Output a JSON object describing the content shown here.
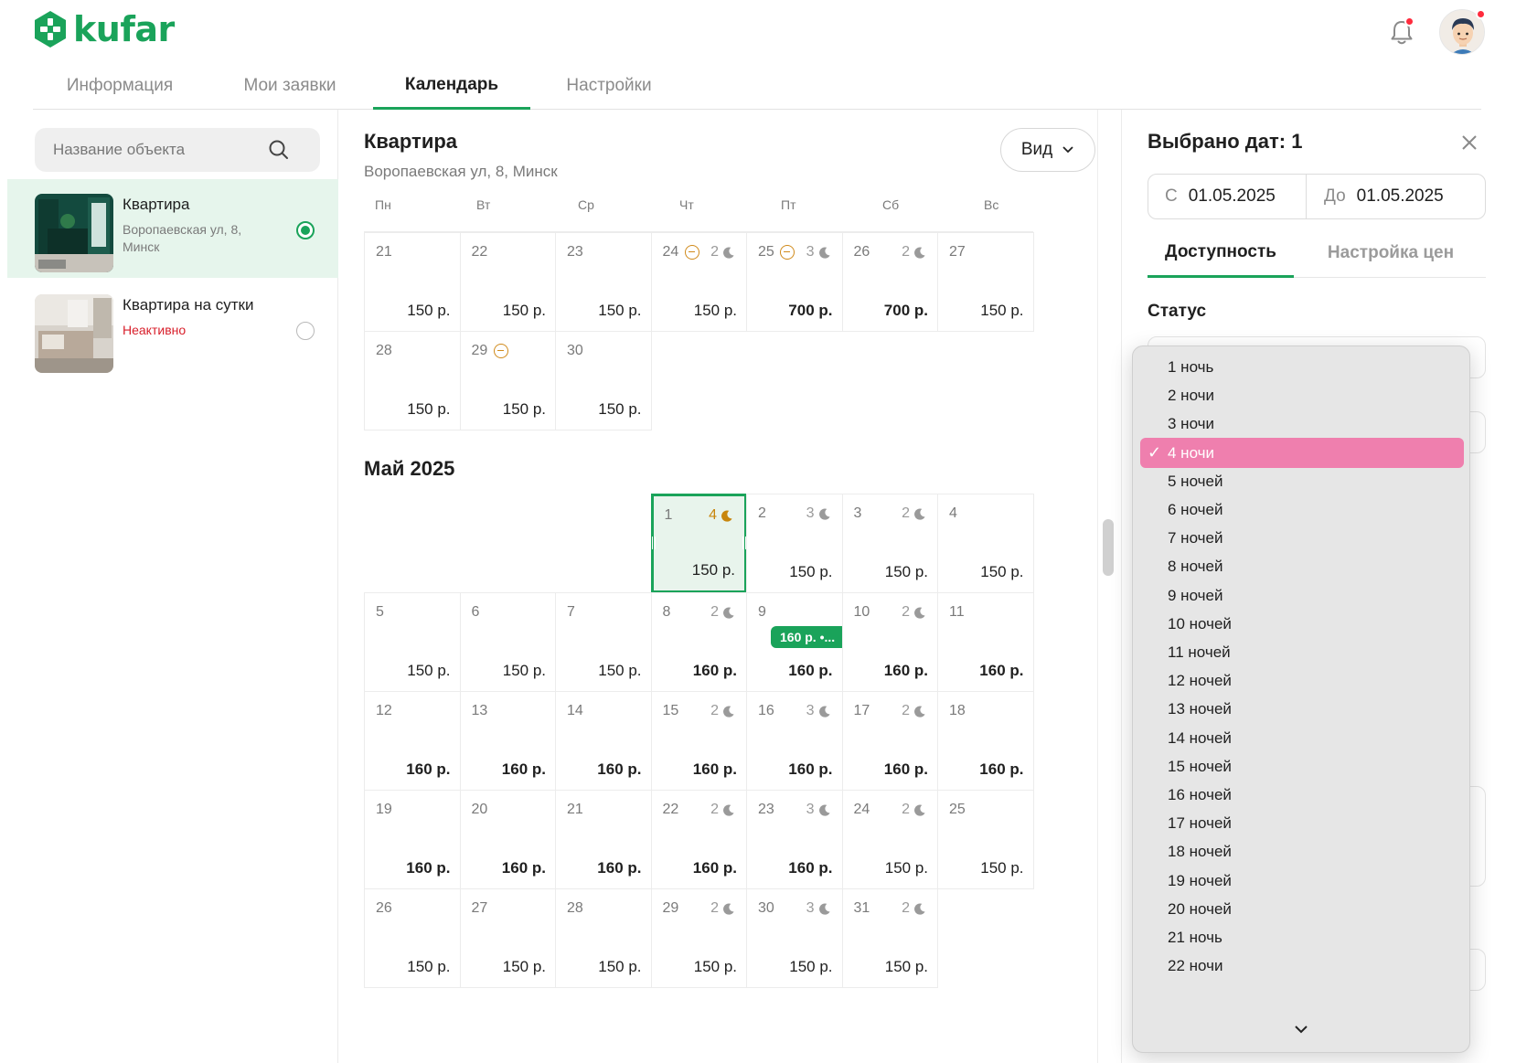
{
  "brand": {
    "name": "kufar",
    "accent": "#1aa35a"
  },
  "nav": {
    "tabs": [
      "Информация",
      "Мои заявки",
      "Календарь",
      "Настройки"
    ],
    "active": 2
  },
  "search": {
    "placeholder": "Название объекта"
  },
  "objects": [
    {
      "title": "Квартира",
      "subtitle": "Воропаевская ул, 8, Минск",
      "selected": true
    },
    {
      "title": "Квартира на сутки",
      "subtitle": "Неактивно",
      "selected": false
    }
  ],
  "calendar": {
    "object_title": "Квартира",
    "object_address": "Воропаевская ул, 8, Минск",
    "view_label": "Вид",
    "weekdays": [
      "Пн",
      "Вт",
      "Ср",
      "Чт",
      "Пт",
      "Сб",
      "Вс"
    ],
    "prev_rows": [
      [
        {
          "day": "21",
          "price": "150 р."
        },
        {
          "day": "22",
          "price": "150 р."
        },
        {
          "day": "23",
          "price": "150 р."
        },
        {
          "day": "24",
          "price": "150 р.",
          "blocked": true,
          "nights": "2"
        },
        {
          "day": "25",
          "price": "700 р.",
          "bold": true,
          "blocked": true,
          "nights": "3"
        },
        {
          "day": "26",
          "price": "700 р.",
          "bold": true,
          "nights": "2"
        },
        {
          "day": "27",
          "price": "150 р."
        }
      ],
      [
        {
          "day": "28",
          "price": "150 р."
        },
        {
          "day": "29",
          "price": "150 р.",
          "blocked": true
        },
        {
          "day": "30",
          "price": "150 р."
        }
      ]
    ],
    "month_title": "Май 2025",
    "month_start_col": 3,
    "may_days": [
      {
        "day": "1",
        "price": "150 р.",
        "nights": "4",
        "nights_highlight": true,
        "selected": true
      },
      {
        "day": "2",
        "price": "150 р.",
        "nights": "3"
      },
      {
        "day": "3",
        "price": "150 р.",
        "nights": "2"
      },
      {
        "day": "4",
        "price": "150 р."
      },
      {
        "day": "5",
        "price": "150 р."
      },
      {
        "day": "6",
        "price": "150 р."
      },
      {
        "day": "7",
        "price": "150 р."
      },
      {
        "day": "8",
        "price": "160 р.",
        "bold": true,
        "nights": "2"
      },
      {
        "day": "9",
        "price": "160 р.",
        "bold": true
      },
      {
        "day": "10",
        "price": "160 р.",
        "bold": true,
        "nights": "2"
      },
      {
        "day": "11",
        "price": "160 р.",
        "bold": true
      },
      {
        "day": "12",
        "price": "160 р.",
        "bold": true
      },
      {
        "day": "13",
        "price": "160 р.",
        "bold": true
      },
      {
        "day": "14",
        "price": "160 р.",
        "bold": true
      },
      {
        "day": "15",
        "price": "160 р.",
        "bold": true,
        "nights": "2"
      },
      {
        "day": "16",
        "price": "160 р.",
        "bold": true,
        "nights": "3"
      },
      {
        "day": "17",
        "price": "160 р.",
        "bold": true,
        "nights": "2"
      },
      {
        "day": "18",
        "price": "160 р.",
        "bold": true
      },
      {
        "day": "19",
        "price": "160 р.",
        "bold": true
      },
      {
        "day": "20",
        "price": "160 р.",
        "bold": true
      },
      {
        "day": "21",
        "price": "160 р.",
        "bold": true
      },
      {
        "day": "22",
        "price": "160 р.",
        "bold": true,
        "nights": "2"
      },
      {
        "day": "23",
        "price": "160 р.",
        "bold": true,
        "nights": "3"
      },
      {
        "day": "24",
        "price": "150 р.",
        "nights": "2"
      },
      {
        "day": "25",
        "price": "150 р."
      },
      {
        "day": "26",
        "price": "150 р."
      },
      {
        "day": "27",
        "price": "150 р."
      },
      {
        "day": "28",
        "price": "150 р."
      },
      {
        "day": "29",
        "price": "150 р.",
        "nights": "2"
      },
      {
        "day": "30",
        "price": "150 р.",
        "nights": "3"
      },
      {
        "day": "31",
        "price": "150 р.",
        "nights": "2"
      }
    ],
    "booking_badge": "160 р. •..."
  },
  "selection": {
    "title": "Выбрано дат: 1",
    "from_label": "С",
    "from": "01.05.2025",
    "to_label": "До",
    "to": "01.05.2025",
    "tabs": [
      "Доступность",
      "Настройка цен"
    ],
    "status_label": "Статус"
  },
  "nights_dropdown": {
    "options": [
      "1 ночь",
      "2 ночи",
      "3 ночи",
      "4 ночи",
      "5 ночей",
      "6 ночей",
      "7 ночей",
      "8 ночей",
      "9 ночей",
      "10 ночей",
      "11 ночей",
      "12 ночей",
      "13 ночей",
      "14 ночей",
      "15 ночей",
      "16 ночей",
      "17 ночей",
      "18 ночей",
      "19 ночей",
      "20 ночей",
      "21 ночь",
      "22 ночи"
    ],
    "selected_index": 3,
    "selected_color": "#ef7fae"
  }
}
